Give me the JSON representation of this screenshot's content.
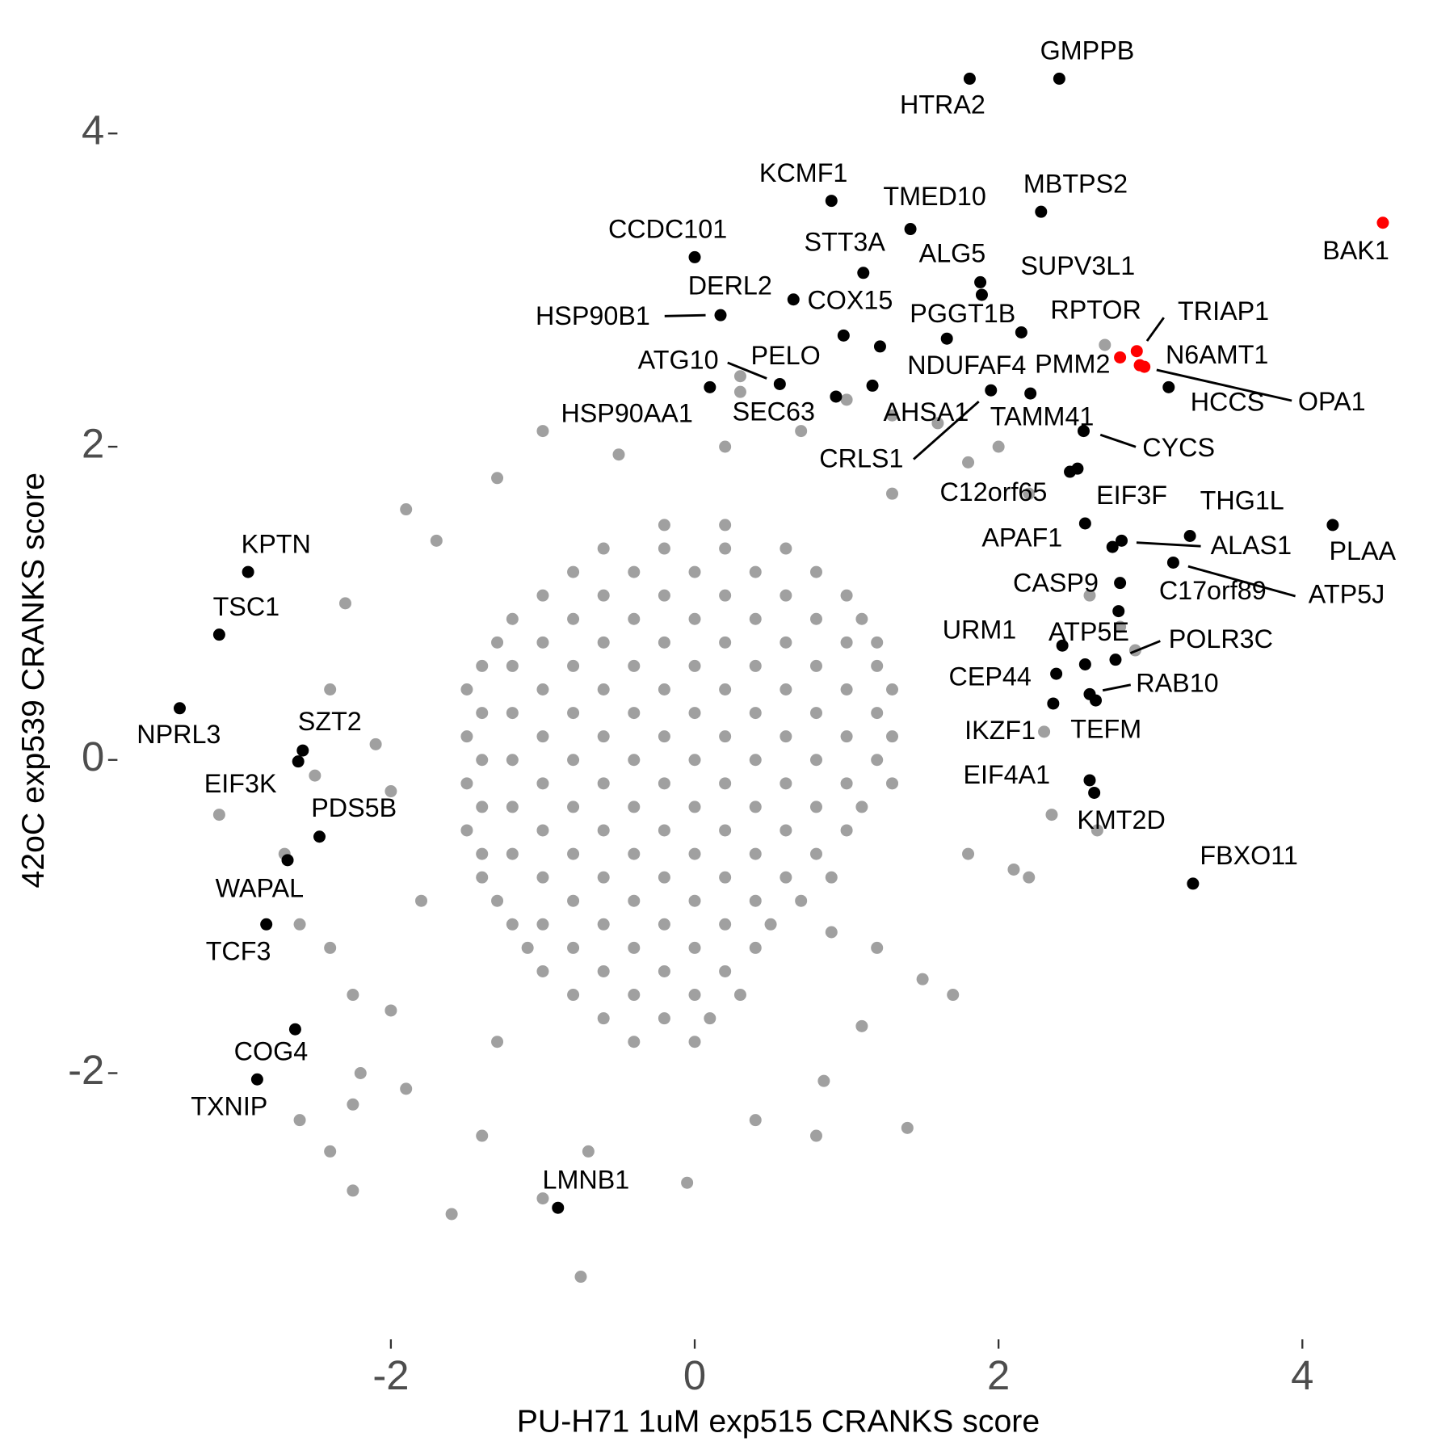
{
  "chart_data": {
    "type": "scatter",
    "xlabel": "PU-H71 1uM exp515 CRANKS score",
    "ylabel": "42oC exp539 CRANKS score",
    "xlim": [
      -3.8,
      4.9
    ],
    "ylim": [
      -3.7,
      4.65
    ],
    "xticks": [
      -2,
      0,
      2,
      4
    ],
    "yticks": [
      -2,
      0,
      2,
      4
    ],
    "grid": false,
    "series": [
      {
        "color": "#a0a0a0",
        "x": [
          -2.3,
          -2.4,
          -2.1,
          -2.5,
          -3.13,
          -2.7,
          -2.6,
          -2.4,
          -2.25,
          -2.2,
          -2.25,
          -2.6,
          -2.25,
          -1.6,
          -1.0,
          -0.75,
          -0.05,
          0.8,
          1.4,
          0.85,
          0.4,
          -0.7,
          -1.4,
          -1.9,
          -1.0,
          -0.5,
          -1.3,
          -1.9,
          -1.7,
          0.3,
          0.2,
          0.7,
          1.0,
          1.3,
          1.6,
          1.8,
          2.0,
          2.2,
          2.6,
          2.8,
          2.9,
          2.3,
          2.35,
          2.65,
          2.1,
          2.2,
          1.8,
          1.7,
          1.5,
          1.2,
          1.1,
          2.7,
          0.3,
          -2.0,
          -1.8,
          -2.0,
          -1.3,
          1.3,
          -2.4,
          0.9,
          -0.2,
          0.2,
          -0.6,
          -0.2,
          0.2,
          0.6,
          -0.8,
          -0.4,
          0.0,
          0.4,
          0.8,
          -1.0,
          -0.6,
          -0.2,
          0.2,
          0.6,
          1.0,
          -1.2,
          -0.8,
          -0.4,
          0.0,
          0.4,
          0.8,
          1.1,
          -1.3,
          -1.0,
          -0.6,
          -0.2,
          0.2,
          0.6,
          1.0,
          1.2,
          -1.4,
          -1.2,
          -0.8,
          -0.4,
          0.0,
          0.4,
          0.8,
          1.2,
          -1.5,
          -1.0,
          -0.6,
          -0.2,
          0.2,
          0.6,
          1.0,
          1.3,
          -1.4,
          -1.2,
          -0.8,
          -0.4,
          0.0,
          0.4,
          0.8,
          1.2,
          -1.5,
          -1.0,
          -0.6,
          -0.2,
          0.2,
          0.6,
          1.0,
          1.3,
          -1.4,
          -1.2,
          -0.8,
          -0.4,
          0.0,
          0.4,
          0.8,
          1.2,
          -1.5,
          -1.0,
          -0.6,
          -0.2,
          0.2,
          0.6,
          1.0,
          1.3,
          -1.4,
          -1.2,
          -0.8,
          -0.4,
          0.0,
          0.4,
          0.8,
          1.1,
          -1.5,
          -1.0,
          -0.6,
          -0.2,
          0.2,
          0.6,
          1.0,
          -1.4,
          -1.2,
          -0.8,
          -0.4,
          0.0,
          0.4,
          0.8,
          -1.4,
          -1.0,
          -0.6,
          -0.2,
          0.2,
          0.6,
          0.9,
          -1.3,
          -0.8,
          -0.4,
          0.0,
          0.4,
          0.7,
          -1.2,
          -1.0,
          -0.6,
          -0.2,
          0.2,
          0.5,
          -1.1,
          -0.8,
          -0.4,
          0.0,
          0.4,
          -1.0,
          -0.6,
          -0.2,
          0.2,
          -0.8,
          -0.4,
          0.0,
          0.3,
          -0.6,
          -0.2,
          0.1,
          -0.4,
          0.0
        ],
        "values": [
          1.0,
          0.45,
          0.1,
          -0.1,
          -0.35,
          -0.6,
          -1.05,
          -1.2,
          -1.5,
          -2.0,
          -2.2,
          -2.3,
          -2.75,
          -2.9,
          -2.8,
          -3.3,
          -2.7,
          -2.4,
          -2.35,
          -2.05,
          -2.3,
          -2.5,
          -2.4,
          -2.1,
          2.1,
          1.95,
          1.8,
          1.6,
          1.4,
          2.35,
          2.0,
          2.1,
          2.3,
          2.2,
          2.15,
          1.9,
          2.0,
          1.7,
          1.05,
          0.85,
          0.7,
          0.18,
          -0.35,
          -0.45,
          -0.7,
          -0.75,
          -0.6,
          -1.5,
          -1.4,
          -1.2,
          -1.7,
          2.65,
          2.45,
          -0.2,
          -0.9,
          -1.6,
          -1.8,
          1.7,
          -2.5,
          -1.1,
          1.5,
          1.5,
          1.35,
          1.35,
          1.35,
          1.35,
          1.2,
          1.2,
          1.2,
          1.2,
          1.2,
          1.05,
          1.05,
          1.05,
          1.05,
          1.05,
          1.05,
          0.9,
          0.9,
          0.9,
          0.9,
          0.9,
          0.9,
          0.9,
          0.75,
          0.75,
          0.75,
          0.75,
          0.75,
          0.75,
          0.75,
          0.75,
          0.6,
          0.6,
          0.6,
          0.6,
          0.6,
          0.6,
          0.6,
          0.6,
          0.45,
          0.45,
          0.45,
          0.45,
          0.45,
          0.45,
          0.45,
          0.45,
          0.3,
          0.3,
          0.3,
          0.3,
          0.3,
          0.3,
          0.3,
          0.3,
          0.15,
          0.15,
          0.15,
          0.15,
          0.15,
          0.15,
          0.15,
          0.15,
          0.0,
          0.0,
          0.0,
          0.0,
          0.0,
          0.0,
          0.0,
          0.0,
          -0.15,
          -0.15,
          -0.15,
          -0.15,
          -0.15,
          -0.15,
          -0.15,
          -0.15,
          -0.3,
          -0.3,
          -0.3,
          -0.3,
          -0.3,
          -0.3,
          -0.3,
          -0.3,
          -0.45,
          -0.45,
          -0.45,
          -0.45,
          -0.45,
          -0.45,
          -0.45,
          -0.6,
          -0.6,
          -0.6,
          -0.6,
          -0.6,
          -0.6,
          -0.6,
          -0.75,
          -0.75,
          -0.75,
          -0.75,
          -0.75,
          -0.75,
          -0.75,
          -0.9,
          -0.9,
          -0.9,
          -0.9,
          -0.9,
          -0.9,
          -1.05,
          -1.05,
          -1.05,
          -1.05,
          -1.05,
          -1.05,
          -1.2,
          -1.2,
          -1.2,
          -1.2,
          -1.2,
          -1.35,
          -1.35,
          -1.35,
          -1.35,
          -1.5,
          -1.5,
          -1.5,
          -1.5,
          -1.65,
          -1.65,
          -1.65,
          -1.8,
          -1.8
        ]
      },
      {
        "color": "#000000",
        "labels": [
          "GMPPB",
          "HTRA2",
          "KCMF1",
          "TMED10",
          "MBTPS2",
          "CCDC101",
          "STT3A",
          "ALG5",
          "SUPV3L1",
          "DERL2",
          "COX15",
          "HSP90B1",
          "PGGT1B",
          "RPTOR",
          "HCCS",
          "NDUFAF4",
          "ATG10",
          "PELO",
          "HSP90AA1",
          "SEC63",
          "AHSA1",
          "CRLS1",
          "CYCS",
          "EIF3F",
          "C12orf65",
          "TAMM41",
          "THG1L",
          "PLAA",
          "APAF1",
          "ALAS1",
          "ATP5J",
          "CASP9",
          "C17orf89",
          "POLR3C",
          "URM1",
          "ATP5E",
          "CEP44",
          "RAB10",
          "IKZF1",
          "TEFM",
          "EIF4A1",
          "KMT2D",
          "FBXO11",
          "KPTN",
          "TSC1",
          "NPRL3",
          "SZT2",
          "EIF3K",
          "PDS5B",
          "WAPAL",
          "TCF3",
          "COG4",
          "TXNIP",
          "LMNB1"
        ],
        "x": [
          2.4,
          1.81,
          0.9,
          1.42,
          2.28,
          0.0,
          1.11,
          1.88,
          1.89,
          0.65,
          0.98,
          0.17,
          1.66,
          2.15,
          3.12,
          1.22,
          0.56,
          0.93,
          0.1,
          1.17,
          2.21,
          1.95,
          2.56,
          2.57,
          2.47,
          2.52,
          3.26,
          4.2,
          2.75,
          2.81,
          3.15,
          2.8,
          2.79,
          2.77,
          2.42,
          2.57,
          2.38,
          2.6,
          2.36,
          2.64,
          2.6,
          2.63,
          3.28,
          -2.94,
          -3.13,
          -3.39,
          -2.58,
          -2.61,
          -2.47,
          -2.68,
          -2.82,
          -2.63,
          -2.88,
          -0.9
        ],
        "values": [
          4.35,
          4.35,
          3.57,
          3.39,
          3.5,
          3.21,
          3.11,
          3.05,
          2.97,
          2.94,
          2.71,
          2.84,
          2.69,
          2.73,
          2.38,
          2.64,
          2.4,
          2.32,
          2.38,
          2.39,
          2.34,
          2.36,
          2.1,
          1.51,
          1.84,
          1.86,
          1.43,
          1.5,
          1.36,
          1.4,
          1.26,
          1.13,
          0.95,
          0.64,
          0.73,
          0.61,
          0.55,
          0.42,
          0.36,
          0.38,
          -0.13,
          -0.21,
          -0.79,
          1.2,
          0.8,
          0.33,
          0.06,
          -0.01,
          -0.49,
          -0.64,
          -1.05,
          -1.72,
          -2.04,
          -2.86
        ]
      },
      {
        "color": "#ff0000",
        "labels": [
          "BAK1",
          "TRIAP1",
          "PMM2",
          "N6AMT1",
          "OPA1"
        ],
        "x": [
          4.53,
          2.91,
          2.8,
          2.96,
          2.93
        ],
        "values": [
          3.43,
          2.61,
          2.57,
          2.51,
          2.52
        ]
      }
    ]
  }
}
